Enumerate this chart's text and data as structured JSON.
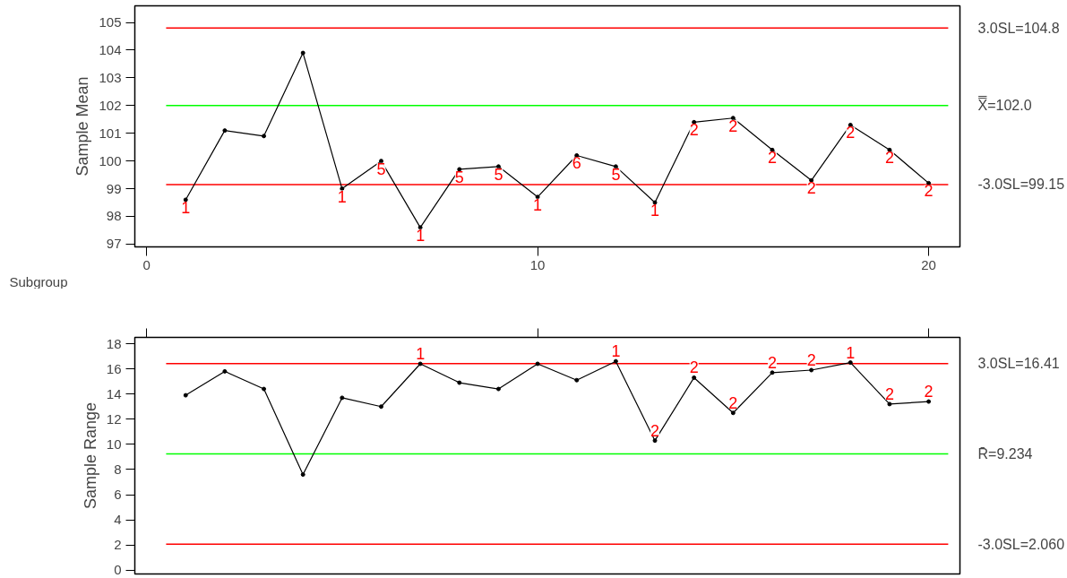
{
  "chart_data": [
    {
      "type": "line",
      "xlabel": "Subgroup",
      "ylabel": "Sample Mean",
      "marker": "circle",
      "grid": false,
      "x": [
        1,
        2,
        3,
        4,
        5,
        6,
        7,
        8,
        9,
        10,
        11,
        12,
        13,
        14,
        15,
        16,
        17,
        18,
        19,
        20
      ],
      "series": [
        {
          "color": "#000000",
          "values": [
            98.6,
            101.1,
            100.9,
            103.9,
            99.0,
            100.0,
            97.6,
            99.7,
            99.8,
            98.7,
            100.2,
            99.8,
            98.5,
            101.4,
            101.55,
            100.4,
            99.3,
            101.3,
            100.4,
            99.2
          ]
        }
      ],
      "annotations": [
        {
          "text": "1",
          "x": 1,
          "y": 98.6
        },
        {
          "text": "1",
          "x": 5,
          "y": 99.0
        },
        {
          "text": "5",
          "x": 6,
          "y": 100.0
        },
        {
          "text": "1",
          "x": 7,
          "y": 97.6
        },
        {
          "text": "5",
          "x": 8,
          "y": 99.7
        },
        {
          "text": "5",
          "x": 9,
          "y": 99.8
        },
        {
          "text": "1",
          "x": 10,
          "y": 98.7
        },
        {
          "text": "6",
          "x": 11,
          "y": 100.2
        },
        {
          "text": "5",
          "x": 12,
          "y": 99.8
        },
        {
          "text": "1",
          "x": 13,
          "y": 98.5
        },
        {
          "text": "2",
          "x": 14,
          "y": 101.4
        },
        {
          "text": "2",
          "x": 15,
          "y": 101.55
        },
        {
          "text": "2",
          "x": 16,
          "y": 100.4
        },
        {
          "text": "2",
          "x": 17,
          "y": 99.3
        },
        {
          "text": "2",
          "x": 18,
          "y": 101.3
        },
        {
          "text": "2",
          "x": 19,
          "y": 100.4
        },
        {
          "text": "2",
          "x": 20,
          "y": 99.2
        }
      ],
      "xlim": [
        -0.3,
        20.8
      ],
      "ylim": [
        96.9,
        105.6
      ],
      "xticks": [
        0,
        10,
        20
      ],
      "yticks": [
        97,
        98,
        99,
        100,
        101,
        102,
        103,
        104,
        105
      ],
      "ref_lines": [
        {
          "axis": "y",
          "value": 104.8,
          "label": "3.0SL=104.8",
          "color": "#ff0000"
        },
        {
          "axis": "y",
          "value": 102.0,
          "label": "X̿=102.0",
          "color": "#00ff00"
        },
        {
          "axis": "y",
          "value": 99.15,
          "label": "-3.0SL=99.15",
          "color": "#ff0000"
        }
      ]
    },
    {
      "type": "line",
      "ylabel": "Sample Range",
      "marker": "circle",
      "grid": false,
      "tick_labels": "y",
      "x": [
        1,
        2,
        3,
        4,
        5,
        6,
        7,
        8,
        9,
        10,
        11,
        12,
        13,
        14,
        15,
        16,
        17,
        18,
        19,
        20
      ],
      "series": [
        {
          "color": "#000000",
          "values": [
            13.9,
            15.8,
            14.4,
            7.6,
            13.7,
            13.0,
            16.4,
            14.9,
            14.4,
            16.4,
            15.1,
            16.6,
            10.3,
            15.3,
            12.5,
            15.7,
            15.9,
            16.5,
            13.2,
            13.4
          ]
        }
      ],
      "annotations": [
        {
          "text": "1",
          "x": 7,
          "y": 16.4
        },
        {
          "text": "1",
          "x": 12,
          "y": 16.6
        },
        {
          "text": "2",
          "x": 13,
          "y": 10.3
        },
        {
          "text": "2",
          "x": 14,
          "y": 15.3
        },
        {
          "text": "2",
          "x": 15,
          "y": 12.5
        },
        {
          "text": "2",
          "x": 16,
          "y": 15.7
        },
        {
          "text": "2",
          "x": 17,
          "y": 15.9
        },
        {
          "text": "1",
          "x": 18,
          "y": 16.5
        },
        {
          "text": "2",
          "x": 19,
          "y": 13.2
        },
        {
          "text": "2",
          "x": 20,
          "y": 13.4
        }
      ],
      "xlim": [
        -0.3,
        20.8
      ],
      "ylim": [
        -0.3,
        18.5
      ],
      "xticks": [
        {
          "value": 0,
          "label": null
        },
        {
          "value": 10,
          "label": null
        },
        {
          "value": 20,
          "label": null
        }
      ],
      "yticks": [
        0,
        2,
        4,
        6,
        8,
        10,
        12,
        14,
        16,
        18
      ],
      "ref_lines": [
        {
          "axis": "y",
          "value": 16.41,
          "label": "3.0SL=16.41",
          "color": "#ff0000"
        },
        {
          "axis": "y",
          "value": 9.234,
          "label": "R̄=9.234",
          "color": "#00ff00"
        },
        {
          "axis": "y",
          "value": 2.06,
          "label": "-3.0SL=2.060",
          "color": "#ff0000"
        }
      ]
    }
  ]
}
